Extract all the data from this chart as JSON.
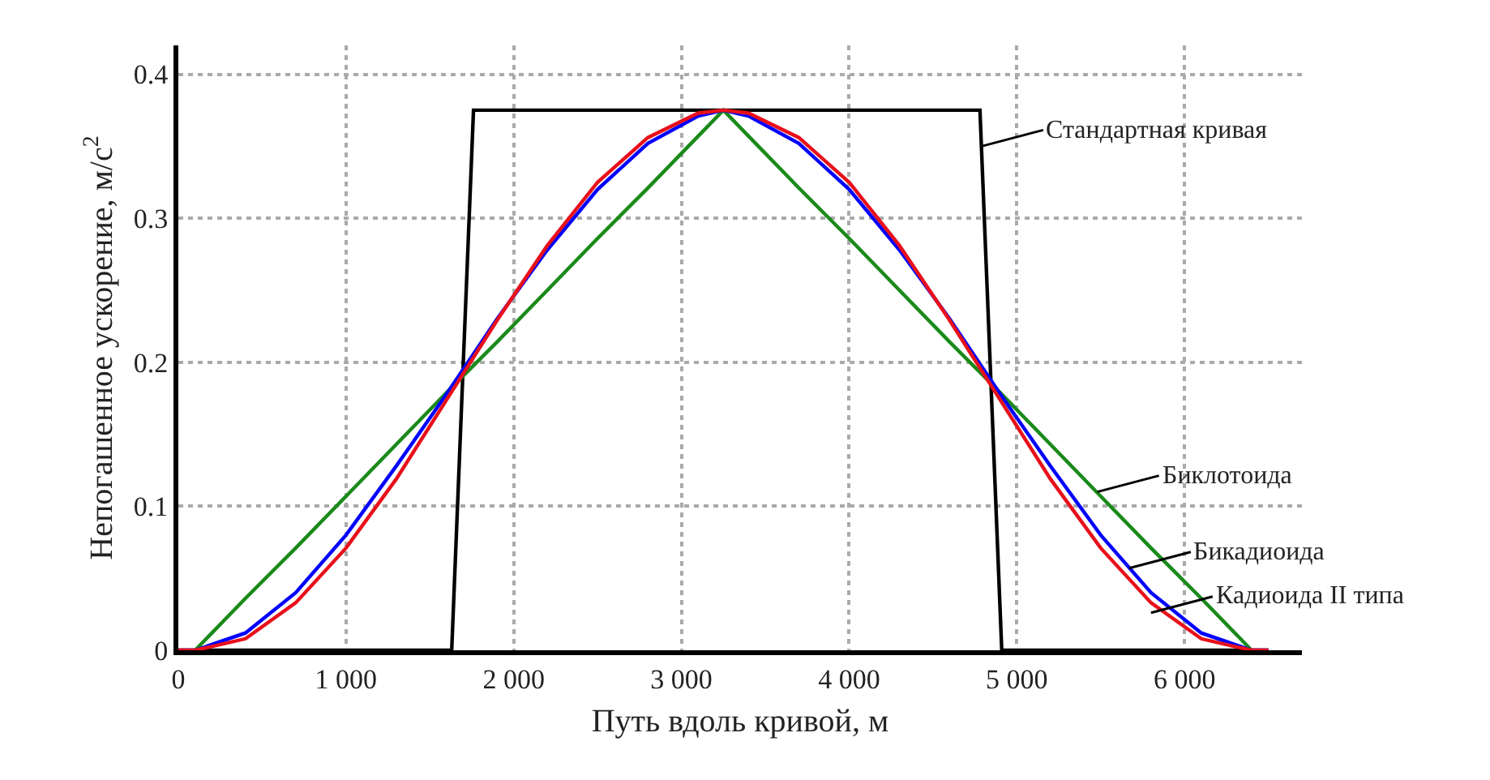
{
  "chart_data": {
    "type": "line",
    "xlabel": "Путь вдоль кривой, м",
    "ylabel": "Непогашенное ускорение, м/с$^{2}$",
    "xlim": [
      0,
      6700
    ],
    "ylim": [
      0,
      0.42
    ],
    "xticks": [
      0,
      {
        "value": 1000,
        "label": "1 000"
      },
      {
        "value": 2000,
        "label": "2 000"
      },
      {
        "value": 3000,
        "label": "3 000"
      },
      {
        "value": 4000,
        "label": "4 000"
      },
      {
        "value": 5000,
        "label": "5 000"
      },
      {
        "value": 6000,
        "label": "6 000"
      }
    ],
    "yticks": [
      0,
      0.1,
      0.2,
      0.3,
      0.4
    ],
    "grid": true,
    "legend": false,
    "marker": "none",
    "line_style": "solid",
    "series": [
      {
        "color": "#000000",
        "x": [
          0,
          1630,
          1760,
          4780,
          4910,
          6500
        ],
        "values": [
          0,
          0,
          0.375,
          0.375,
          0,
          0
        ]
      },
      {
        "color": "#1a8a1a",
        "x": [
          100,
          400,
          700,
          1000,
          1300,
          1600,
          1900,
          2200,
          2500,
          2800,
          3100,
          3250,
          3400,
          3700,
          4000,
          4300,
          4600,
          4900,
          5200,
          5500,
          5800,
          6100,
          6400
        ],
        "values": [
          0,
          0.036,
          0.071,
          0.107,
          0.143,
          0.179,
          0.214,
          0.25,
          0.286,
          0.321,
          0.357,
          0.375,
          0.357,
          0.321,
          0.286,
          0.25,
          0.214,
          0.179,
          0.143,
          0.107,
          0.071,
          0.036,
          0
        ]
      },
      {
        "color": "#0000ff",
        "x": [
          0,
          100,
          400,
          700,
          1000,
          1300,
          1600,
          1900,
          2200,
          2500,
          2800,
          3100,
          3250,
          3400,
          3700,
          4000,
          4300,
          4600,
          4900,
          5200,
          5500,
          5800,
          6100,
          6400,
          6500
        ],
        "values": [
          0,
          0,
          0.012,
          0.04,
          0.08,
          0.128,
          0.178,
          0.23,
          0.278,
          0.32,
          0.352,
          0.371,
          0.375,
          0.371,
          0.352,
          0.32,
          0.278,
          0.23,
          0.178,
          0.128,
          0.08,
          0.04,
          0.012,
          0,
          0
        ]
      },
      {
        "color": "#e8101a",
        "x": [
          0,
          100,
          400,
          700,
          1000,
          1300,
          1600,
          1900,
          2200,
          2500,
          2800,
          3100,
          3250,
          3400,
          3700,
          4000,
          4300,
          4600,
          4900,
          5200,
          5500,
          5800,
          6100,
          6400,
          6500
        ],
        "values": [
          0,
          0,
          0.008,
          0.033,
          0.071,
          0.119,
          0.174,
          0.229,
          0.281,
          0.325,
          0.356,
          0.373,
          0.375,
          0.373,
          0.356,
          0.325,
          0.281,
          0.229,
          0.174,
          0.119,
          0.071,
          0.033,
          0.008,
          0,
          0
        ]
      }
    ],
    "annotations": [
      {
        "text": "Стандартная кривая",
        "x": 4790,
        "y": 0.35
      },
      {
        "text": "Биклотоида",
        "x": 5480,
        "y": 0.11
      },
      {
        "text": "Бикадиоида",
        "x": 5670,
        "y": 0.057
      },
      {
        "text": "Кадиоида II типа",
        "x": 5800,
        "y": 0.026
      }
    ]
  }
}
